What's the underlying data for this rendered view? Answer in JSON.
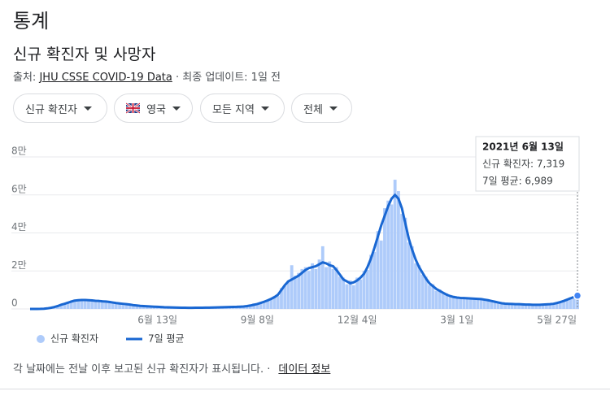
{
  "header": {
    "title": "통계",
    "subtitle": "신규 확진자 및 사망자",
    "source_label": "출처:",
    "source_link": "JHU CSSE COVID-19 Data",
    "updated": "· 최종 업데이트: 1일 전"
  },
  "filters": [
    "신규 확진자",
    "영국",
    "모든 지역",
    "전체"
  ],
  "chart_data": {
    "type": "bar",
    "categories": [
      null,
      null,
      null,
      null,
      null,
      null,
      null,
      null,
      null,
      null,
      null,
      null,
      null,
      null,
      null,
      null,
      null,
      null,
      null,
      null,
      null,
      null,
      null,
      null,
      null,
      null,
      null,
      null,
      null,
      null,
      null,
      null,
      null,
      null,
      null,
      null,
      null,
      "6월 13일",
      null,
      null,
      null,
      null,
      null,
      null,
      null,
      null,
      null,
      null,
      null,
      null,
      null,
      null,
      null,
      null,
      null,
      null,
      null,
      null,
      null,
      null,
      null,
      null,
      null,
      null,
      null,
      null,
      "9월 8일",
      null,
      null,
      null,
      null,
      null,
      null,
      null,
      null,
      null,
      null,
      null,
      null,
      null,
      null,
      null,
      null,
      null,
      null,
      null,
      null,
      null,
      null,
      null,
      null,
      null,
      null,
      null,
      null,
      "12월 4일",
      null,
      null,
      null,
      null,
      null,
      null,
      null,
      null,
      null,
      null,
      null,
      null,
      null,
      null,
      null,
      null,
      null,
      null,
      null,
      null,
      null,
      null,
      null,
      null,
      null,
      null,
      null,
      null,
      "3월 1일",
      null,
      null,
      null,
      null,
      null,
      null,
      null,
      null,
      null,
      null,
      null,
      null,
      null,
      null,
      null,
      null,
      null,
      null,
      null,
      null,
      null,
      null,
      null,
      null,
      null,
      null,
      null,
      null,
      "5월 27일",
      null,
      null,
      null,
      null,
      null,
      null
    ],
    "series": [
      {
        "name": "신규 확진자",
        "color": "#aecbfa",
        "values": [
          0,
          0,
          20,
          40,
          120,
          350,
          700,
          1200,
          1700,
          2600,
          3000,
          3800,
          4500,
          5000,
          4200,
          5100,
          5300,
          4100,
          4800,
          4900,
          3900,
          4500,
          3600,
          4100,
          3000,
          3500,
          2700,
          3000,
          2300,
          2600,
          1800,
          2000,
          1500,
          1700,
          1300,
          1400,
          1000,
          1200,
          900,
          1000,
          800,
          900,
          700,
          800,
          600,
          700,
          550,
          700,
          600,
          700,
          600,
          750,
          650,
          850,
          750,
          950,
          850,
          1050,
          950,
          1150,
          1000,
          1350,
          1200,
          1700,
          1700,
          2900,
          2400,
          3500,
          3600,
          4900,
          4900,
          6900,
          6800,
          11000,
          12000,
          15000,
          23000,
          17500,
          19000,
          21000,
          22000,
          20000,
          24000,
          21000,
          26000,
          33000,
          22000,
          25000,
          21000,
          22000,
          17000,
          16500,
          13000,
          15000,
          12500,
          16500,
          15500,
          20000,
          20500,
          28500,
          30000,
          41000,
          36000,
          53000,
          57000,
          55000,
          68000,
          62000,
          50000,
          48000,
          35000,
          33000,
          24000,
          23000,
          18000,
          17000,
          12500,
          13000,
          9500,
          10300,
          8000,
          8200,
          6300,
          6900,
          5500,
          6300,
          5200,
          6200,
          5000,
          5800,
          4900,
          5700,
          4500,
          5000,
          3900,
          4200,
          3100,
          3300,
          2600,
          3000,
          2400,
          2800,
          2300,
          2700,
          2100,
          2600,
          2000,
          2500,
          2000,
          2600,
          2200,
          2800,
          2500,
          3500,
          3300,
          4700,
          4600,
          6200,
          5800,
          7319
        ]
      },
      {
        "name": "7일 평균",
        "color": "#1967d2",
        "type": "line",
        "values": [
          0,
          0,
          10,
          30,
          100,
          300,
          600,
          1000,
          1500,
          2200,
          2700,
          3300,
          3900,
          4400,
          4600,
          4700,
          4700,
          4600,
          4500,
          4300,
          4200,
          4000,
          3900,
          3700,
          3400,
          3100,
          2900,
          2700,
          2500,
          2300,
          2000,
          1800,
          1600,
          1500,
          1400,
          1300,
          1200,
          1100,
          1000,
          900,
          850,
          800,
          750,
          700,
          650,
          620,
          600,
          600,
          620,
          630,
          650,
          680,
          700,
          750,
          800,
          850,
          900,
          950,
          1000,
          1050,
          1100,
          1200,
          1300,
          1500,
          1800,
          2200,
          2600,
          3200,
          3800,
          4500,
          5300,
          6200,
          7500,
          10000,
          12500,
          14500,
          15500,
          16500,
          17500,
          19000,
          20500,
          21500,
          22000,
          22500,
          23500,
          24500,
          24000,
          23000,
          22500,
          20500,
          18000,
          15500,
          14500,
          13500,
          14000,
          15000,
          16500,
          18500,
          22000,
          26500,
          32000,
          38000,
          44000,
          49000,
          54000,
          58000,
          60000,
          58000,
          53000,
          45000,
          37000,
          31000,
          26000,
          22000,
          19000,
          16000,
          13500,
          12000,
          10500,
          9500,
          8500,
          7500,
          6800,
          6300,
          6000,
          5800,
          5700,
          5600,
          5500,
          5400,
          5300,
          5200,
          4900,
          4600,
          4200,
          3800,
          3400,
          3000,
          2800,
          2700,
          2600,
          2500,
          2500,
          2400,
          2300,
          2300,
          2200,
          2200,
          2200,
          2300,
          2400,
          2500,
          2700,
          3100,
          3600,
          4200,
          4900,
          5600,
          6300,
          6989
        ]
      }
    ],
    "ylim": [
      0,
      80000
    ],
    "yticks": [
      0,
      {
        "value": 20000,
        "label": "2만"
      },
      {
        "value": 40000,
        "label": "4만"
      },
      {
        "value": 60000,
        "label": "6만"
      },
      {
        "value": 80000,
        "label": "8만"
      }
    ],
    "grid": true,
    "tooltip": {
      "title": "2021년 6월 13일",
      "rows": [
        "신규 확진자: 7,319",
        "7일 평균: 6,989"
      ]
    }
  },
  "footer": {
    "note": "각 날짜에는 전날 이후 보고된 신규 확진자가 표시됩니다. ·",
    "link": "데이터 정보"
  }
}
